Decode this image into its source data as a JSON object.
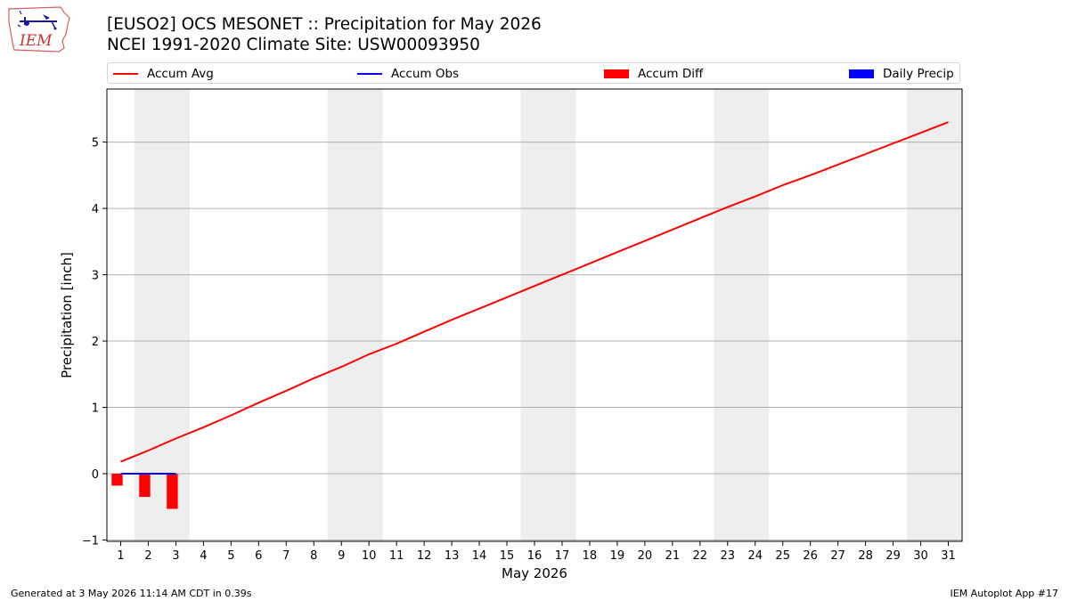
{
  "header": {
    "title_line1": "[EUSO2] OCS MESONET :: Precipitation for May 2026",
    "title_line2": "NCEI 1991-2020 Climate Site: USW00093950"
  },
  "logo": {
    "text": "IEM",
    "icon": "iem-iowa-logo-icon"
  },
  "legend": {
    "items": [
      {
        "label": "Accum Avg",
        "kind": "line",
        "color": "#ff0000"
      },
      {
        "label": "Accum Obs",
        "kind": "line",
        "color": "#0000ff"
      },
      {
        "label": "Accum Diff",
        "kind": "patch",
        "color": "#ff0000"
      },
      {
        "label": "Daily Precip",
        "kind": "patch",
        "color": "#0000ff"
      }
    ]
  },
  "chart_data": {
    "type": "bar",
    "xlabel": "May 2026",
    "ylabel": "Precipitation [inch]",
    "xlim": [
      0.5,
      31.5
    ],
    "ylim": [
      -1.02,
      5.8
    ],
    "x_ticks": [
      1,
      2,
      3,
      4,
      5,
      6,
      7,
      8,
      9,
      10,
      11,
      12,
      13,
      14,
      15,
      16,
      17,
      18,
      19,
      20,
      21,
      22,
      23,
      24,
      25,
      26,
      27,
      28,
      29,
      30,
      31
    ],
    "y_ticks": [
      -1,
      0,
      1,
      2,
      3,
      4,
      5
    ],
    "grid": "horizontal",
    "weekend_shading": [
      [
        1.5,
        3.5
      ],
      [
        8.5,
        10.5
      ],
      [
        15.5,
        17.5
      ],
      [
        22.5,
        24.5
      ],
      [
        29.5,
        31.5
      ]
    ],
    "series": [
      {
        "name": "Accum Avg",
        "kind": "line",
        "color": "#ff0000",
        "x": [
          1,
          2,
          3,
          4,
          5,
          6,
          7,
          8,
          9,
          10,
          11,
          12,
          13,
          14,
          15,
          16,
          17,
          18,
          19,
          20,
          21,
          22,
          23,
          24,
          25,
          26,
          27,
          28,
          29,
          30,
          31
        ],
        "values": [
          0.18,
          0.35,
          0.53,
          0.7,
          0.88,
          1.07,
          1.25,
          1.44,
          1.61,
          1.8,
          1.96,
          2.14,
          2.32,
          2.49,
          2.66,
          2.83,
          3.0,
          3.17,
          3.34,
          3.51,
          3.68,
          3.85,
          4.02,
          4.18,
          4.35,
          4.5,
          4.66,
          4.82,
          4.98,
          5.14,
          5.3
        ]
      },
      {
        "name": "Accum Obs",
        "kind": "line",
        "color": "#0000ff",
        "x": [
          1,
          2,
          3
        ],
        "values": [
          0,
          0,
          0
        ]
      },
      {
        "name": "Accum Diff",
        "kind": "bar",
        "color": "#ff0000",
        "x": [
          1,
          2,
          3
        ],
        "values": [
          -0.18,
          -0.35,
          -0.53
        ]
      },
      {
        "name": "Daily Precip",
        "kind": "bar",
        "color": "#0000ff",
        "x": [
          1,
          2,
          3
        ],
        "values": [
          0,
          0,
          0
        ]
      }
    ]
  },
  "footer": {
    "generated": "Generated at 3 May 2026 11:14 AM CDT in 0.39s",
    "app": "IEM Autoplot App #17"
  }
}
